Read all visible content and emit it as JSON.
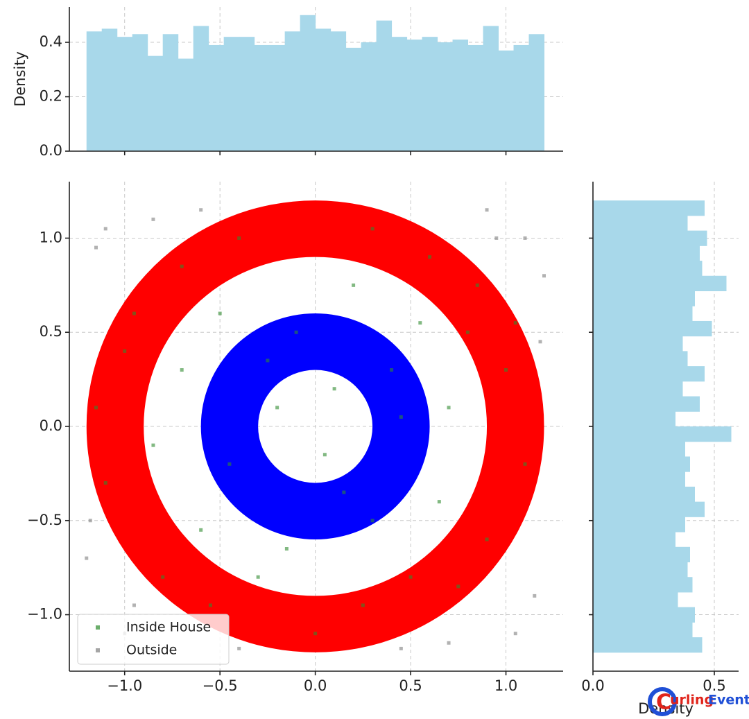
{
  "chart_data": [
    {
      "type": "histogram",
      "orientation": "vertical",
      "ylabel": "Density",
      "color": "#a8d8ea",
      "bins": [
        -1.2,
        -1.12,
        -1.04,
        -0.96,
        -0.88,
        -0.8,
        -0.72,
        -0.64,
        -0.56,
        -0.48,
        -0.4,
        -0.32,
        -0.24,
        -0.16,
        -0.08,
        0,
        0.08,
        0.16,
        0.24,
        0.32,
        0.4,
        0.48,
        0.56,
        0.64,
        0.72,
        0.8,
        0.88,
        0.96,
        1.04,
        1.12,
        1.2
      ],
      "values": [
        0.44,
        0.45,
        0.42,
        0.43,
        0.35,
        0.43,
        0.34,
        0.46,
        0.39,
        0.42,
        0.42,
        0.39,
        0.39,
        0.44,
        0.5,
        0.45,
        0.44,
        0.38,
        0.4,
        0.48,
        0.42,
        0.41,
        0.42,
        0.4,
        0.41,
        0.39,
        0.46,
        0.37,
        0.39,
        0.43
      ],
      "xlim": [
        -1.29,
        1.3
      ],
      "ylim": [
        0,
        0.53
      ],
      "xgrid": [
        -1.0,
        -0.5,
        0,
        0.5,
        1.0
      ],
      "yticks": [
        {
          "value": 0,
          "label": "0.0"
        },
        0.2,
        0.4
      ],
      "grid": true
    },
    {
      "type": "scatter",
      "xlim": [
        -1.29,
        1.3
      ],
      "ylim": [
        -1.3,
        1.3
      ],
      "grid": true,
      "legend": "lower left",
      "xticks": [
        {
          "value": -1.0,
          "label": "−1.0"
        },
        {
          "value": -0.5,
          "label": "−0.5"
        },
        {
          "value": 0,
          "label": "0.0"
        },
        0.5,
        {
          "value": 1.0,
          "label": "1.0"
        }
      ],
      "yticks": [
        {
          "value": -1.0,
          "label": "−1.0"
        },
        {
          "value": -0.5,
          "label": "−0.5"
        },
        {
          "value": 0,
          "label": "0.0"
        },
        0.5,
        {
          "value": 1.0,
          "label": "1.0"
        }
      ],
      "rings": [
        {
          "outer": 1.2,
          "inner": 0.9,
          "color": "#ff0000"
        },
        {
          "outer": 0.6,
          "inner": 0.3,
          "color": "#0000ff"
        }
      ],
      "series": [
        {
          "name": "Inside House",
          "color": "#2e8b2e",
          "x": [
            0.1,
            -0.2,
            0.05,
            0.4,
            -0.45,
            0.3,
            -0.1,
            0.7,
            -0.7,
            0.65,
            -0.6,
            0.2,
            -0.3,
            0.8,
            -0.85,
            0.5,
            1.0,
            -1.0,
            0.9,
            -0.8,
            0.3,
            -0.4,
            0.0,
            1.1,
            -1.1,
            0.6,
            -0.7,
            0.75,
            0.15,
            -0.25,
            0.45,
            -0.5,
            0.55,
            -0.15,
            0.85,
            -0.95,
            0.25,
            -0.55,
            1.05,
            -1.15
          ],
          "y": [
            0.2,
            0.1,
            -0.15,
            0.3,
            -0.2,
            -0.5,
            0.5,
            0.1,
            0.3,
            -0.4,
            -0.55,
            0.75,
            -0.8,
            0.5,
            -0.1,
            -0.8,
            0.3,
            0.4,
            -0.6,
            -0.8,
            1.05,
            1.0,
            -1.1,
            -0.2,
            -0.3,
            0.9,
            0.85,
            -0.85,
            -0.35,
            0.35,
            0.05,
            0.6,
            0.55,
            -0.65,
            0.75,
            0.6,
            -0.95,
            -0.95,
            0.55,
            0.1
          ]
        },
        {
          "name": "Outside",
          "color": "#7f7f7f",
          "x": [
            1.1,
            -1.1,
            1.15,
            -1.0,
            0.9,
            -0.85,
            1.2,
            -1.2,
            0.7,
            -0.6,
            1.05,
            -1.15,
            0.95,
            -0.95,
            1.18,
            -1.18,
            0.45,
            -0.4
          ],
          "y": [
            1.0,
            1.05,
            -0.9,
            -1.1,
            1.15,
            1.1,
            0.8,
            -0.7,
            -1.15,
            1.15,
            -1.1,
            0.95,
            1.0,
            -0.95,
            0.45,
            -0.5,
            -1.18,
            -1.18
          ]
        }
      ]
    },
    {
      "type": "histogram",
      "orientation": "horizontal",
      "xlabel": "Density",
      "color": "#a8d8ea",
      "bins": [
        -1.2,
        -1.12,
        -1.04,
        -0.96,
        -0.88,
        -0.8,
        -0.72,
        -0.64,
        -0.56,
        -0.48,
        -0.4,
        -0.32,
        -0.24,
        -0.16,
        -0.08,
        0,
        0.08,
        0.16,
        0.24,
        0.32,
        0.4,
        0.48,
        0.56,
        0.64,
        0.72,
        0.8,
        0.88,
        0.96,
        1.04,
        1.12,
        1.2
      ],
      "values": [
        0.45,
        0.41,
        0.42,
        0.35,
        0.41,
        0.39,
        0.4,
        0.34,
        0.38,
        0.46,
        0.42,
        0.38,
        0.4,
        0.38,
        0.57,
        0.34,
        0.44,
        0.37,
        0.46,
        0.39,
        0.37,
        0.49,
        0.41,
        0.42,
        0.55,
        0.45,
        0.44,
        0.47,
        0.39,
        0.46
      ],
      "xlim": [
        0,
        0.6
      ],
      "ylim": [
        -1.3,
        1.3
      ],
      "ygrid": [
        -1.0,
        -0.5,
        0,
        0.5,
        1.0
      ],
      "xticks": [
        {
          "value": 0,
          "label": "0.0"
        },
        0.5
      ],
      "grid": true
    }
  ],
  "watermark": [
    "C",
    "urling",
    "Event"
  ]
}
